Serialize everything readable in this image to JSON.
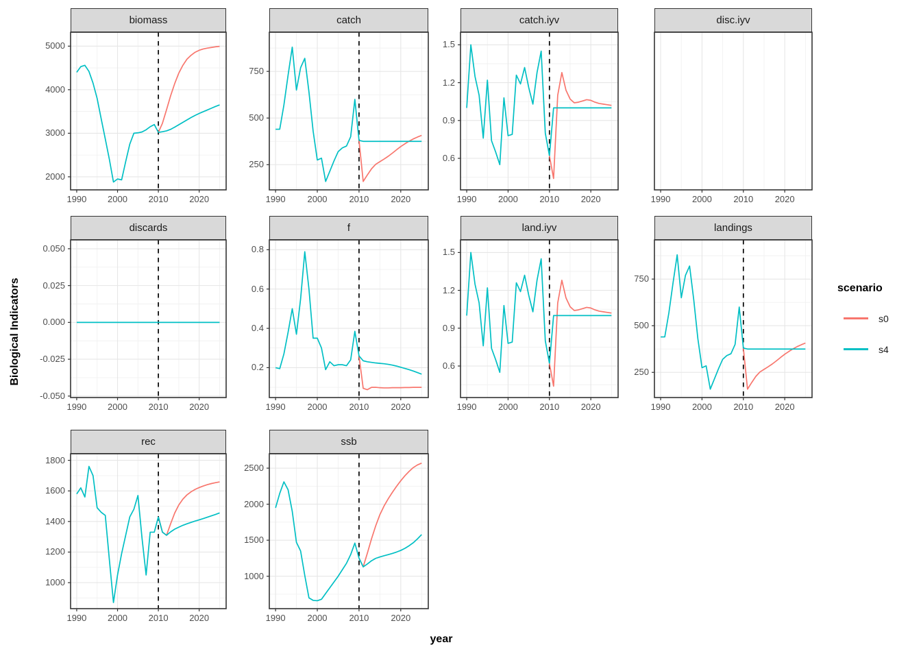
{
  "figure": {
    "x_axis_title": "year",
    "y_axis_title": "Biological Indicators",
    "x_ticks": [
      1990,
      2000,
      2010,
      2020
    ],
    "x_tick_labels": [
      "1990",
      "2000",
      "2010",
      "2020"
    ],
    "x_minor_ticks": [
      1995,
      2005,
      2015,
      2025
    ],
    "xlim": [
      1988.5,
      2026.6
    ],
    "forecast_divider_year": 2010
  },
  "legend": {
    "title": "scenario",
    "entries": [
      {
        "label": "s0",
        "scenario": "s0"
      },
      {
        "label": "s4",
        "scenario": "s4"
      }
    ]
  },
  "colors": {
    "s0": "#F8766D",
    "s4": "#00BFC4",
    "strip_bg": "#D9D9D9",
    "panel_border": "#333333",
    "grid_major": "#E6E6E6",
    "grid_minor": "#F1F1F1",
    "tick_label": "#4D4D4D",
    "divider": "#000000"
  },
  "chart_data": [
    {
      "type": "line",
      "title": "biomass",
      "row": 0,
      "col": 0,
      "show_vline": true,
      "ylim": [
        1700,
        5320
      ],
      "yticks": [
        2000,
        3000,
        4000,
        5000
      ],
      "ytick_labels": [
        "2000",
        "3000",
        "4000",
        "5000"
      ],
      "series": [
        {
          "scenario": "s0",
          "phase": "projection",
          "x0": 2010,
          "y": [
            3020,
            3230,
            3540,
            3860,
            4140,
            4380,
            4560,
            4700,
            4790,
            4860,
            4905,
            4935,
            4955,
            4970,
            4985,
            4995
          ]
        },
        {
          "scenario": "s4",
          "phase": "history",
          "x0": 1990,
          "y": [
            4400,
            4530,
            4560,
            4420,
            4150,
            3800,
            3330,
            2870,
            2400,
            1880,
            1950,
            1930,
            2350,
            2750,
            3000,
            3010,
            3030,
            3080,
            3150,
            3200,
            3020
          ]
        },
        {
          "scenario": "s4",
          "phase": "projection",
          "x0": 2010,
          "y": [
            3020,
            3035,
            3055,
            3090,
            3140,
            3195,
            3250,
            3305,
            3360,
            3410,
            3455,
            3495,
            3535,
            3575,
            3615,
            3650
          ]
        }
      ]
    },
    {
      "type": "line",
      "title": "catch",
      "row": 0,
      "col": 1,
      "show_vline": true,
      "ylim": [
        115,
        960
      ],
      "yticks": [
        250,
        500,
        750
      ],
      "ytick_labels": [
        "250",
        "500",
        "750"
      ],
      "series": [
        {
          "scenario": "s0",
          "phase": "projection",
          "x0": 2010,
          "y": [
            380,
            160,
            195,
            228,
            252,
            266,
            280,
            295,
            312,
            330,
            347,
            362,
            376,
            388,
            398,
            407
          ]
        },
        {
          "scenario": "s4",
          "phase": "history",
          "x0": 1990,
          "y": [
            440,
            440,
            570,
            730,
            880,
            650,
            770,
            820,
            640,
            430,
            275,
            285,
            160,
            215,
            270,
            320,
            340,
            350,
            400,
            600,
            380
          ]
        },
        {
          "scenario": "s4",
          "phase": "projection",
          "x0": 2010,
          "y": [
            380,
            375,
            375,
            375,
            375,
            375,
            375,
            375,
            375,
            375,
            375,
            375,
            375,
            375,
            375,
            375
          ]
        }
      ]
    },
    {
      "type": "line",
      "title": "catch.iyv",
      "row": 0,
      "col": 2,
      "show_vline": true,
      "ylim": [
        0.35,
        1.6
      ],
      "yticks": [
        0.6,
        0.9,
        1.2,
        1.5
      ],
      "ytick_labels": [
        "0.6",
        "0.9",
        "1.2",
        "1.5"
      ],
      "series": [
        {
          "scenario": "s0",
          "phase": "projection",
          "x0": 2010,
          "y": [
            0.62,
            0.44,
            1.1,
            1.28,
            1.14,
            1.07,
            1.04,
            1.045,
            1.055,
            1.065,
            1.06,
            1.045,
            1.035,
            1.03,
            1.025,
            1.02
          ]
        },
        {
          "scenario": "s4",
          "phase": "history",
          "x0": 1990,
          "y": [
            1.0,
            1.5,
            1.25,
            1.1,
            0.76,
            1.22,
            0.74,
            0.65,
            0.55,
            1.08,
            0.78,
            0.79,
            1.26,
            1.19,
            1.32,
            1.16,
            1.03,
            1.28,
            1.45,
            0.8,
            0.62
          ]
        },
        {
          "scenario": "s4",
          "phase": "projection",
          "x0": 2010,
          "y": [
            0.62,
            1.0,
            1.0,
            1.0,
            1.0,
            1.0,
            1.0,
            1.0,
            1.0,
            1.0,
            1.0,
            1.0,
            1.0,
            1.0,
            1.0,
            1.0
          ]
        }
      ]
    },
    {
      "type": "line",
      "title": "disc.iyv",
      "row": 0,
      "col": 3,
      "show_vline": false,
      "ylim": [
        0,
        1
      ],
      "yticks": [],
      "ytick_labels": [],
      "series": []
    },
    {
      "type": "line",
      "title": "discards",
      "row": 1,
      "col": 0,
      "show_vline": true,
      "ylim": [
        -0.051,
        0.056
      ],
      "yticks": [
        -0.05,
        -0.025,
        0.0,
        0.025,
        0.05
      ],
      "ytick_labels": [
        "-0.050",
        "-0.025",
        "0.000",
        "0.025",
        "0.050"
      ],
      "series": [
        {
          "scenario": "s4",
          "phase": "history",
          "x": [
            1990,
            2025
          ],
          "y": [
            0,
            0
          ]
        }
      ]
    },
    {
      "type": "line",
      "title": "f",
      "row": 1,
      "col": 1,
      "show_vline": true,
      "ylim": [
        0.048,
        0.85
      ],
      "yticks": [
        0.2,
        0.4,
        0.6,
        0.8
      ],
      "ytick_labels": [
        "0.2",
        "0.4",
        "0.6",
        "0.8"
      ],
      "series": [
        {
          "scenario": "s0",
          "phase": "projection",
          "x0": 2010,
          "y": [
            0.26,
            0.095,
            0.088,
            0.1,
            0.1,
            0.098,
            0.097,
            0.097,
            0.098,
            0.098,
            0.098,
            0.099,
            0.099,
            0.1,
            0.1,
            0.1
          ]
        },
        {
          "scenario": "s4",
          "phase": "history",
          "x0": 1990,
          "y": [
            0.2,
            0.195,
            0.27,
            0.38,
            0.5,
            0.37,
            0.55,
            0.79,
            0.6,
            0.35,
            0.35,
            0.3,
            0.19,
            0.23,
            0.21,
            0.215,
            0.215,
            0.21,
            0.24,
            0.385,
            0.26
          ]
        },
        {
          "scenario": "s4",
          "phase": "projection",
          "x0": 2010,
          "y": [
            0.26,
            0.235,
            0.23,
            0.227,
            0.224,
            0.222,
            0.22,
            0.217,
            0.213,
            0.208,
            0.202,
            0.196,
            0.19,
            0.183,
            0.175,
            0.167
          ]
        }
      ]
    },
    {
      "type": "line",
      "title": "land.iyv",
      "row": 1,
      "col": 2,
      "show_vline": true,
      "ylim": [
        0.35,
        1.6
      ],
      "yticks": [
        0.6,
        0.9,
        1.2,
        1.5
      ],
      "ytick_labels": [
        "0.6",
        "0.9",
        "1.2",
        "1.5"
      ],
      "series": [
        {
          "scenario": "s0",
          "phase": "projection",
          "x0": 2010,
          "y": [
            0.62,
            0.44,
            1.1,
            1.28,
            1.14,
            1.07,
            1.04,
            1.045,
            1.055,
            1.065,
            1.06,
            1.045,
            1.035,
            1.03,
            1.025,
            1.02
          ]
        },
        {
          "scenario": "s4",
          "phase": "history",
          "x0": 1990,
          "y": [
            1.0,
            1.5,
            1.25,
            1.1,
            0.76,
            1.22,
            0.74,
            0.65,
            0.55,
            1.08,
            0.78,
            0.79,
            1.26,
            1.19,
            1.32,
            1.16,
            1.03,
            1.28,
            1.45,
            0.8,
            0.62
          ]
        },
        {
          "scenario": "s4",
          "phase": "projection",
          "x0": 2010,
          "y": [
            0.62,
            1.0,
            1.0,
            1.0,
            1.0,
            1.0,
            1.0,
            1.0,
            1.0,
            1.0,
            1.0,
            1.0,
            1.0,
            1.0,
            1.0,
            1.0
          ]
        }
      ]
    },
    {
      "type": "line",
      "title": "landings",
      "row": 1,
      "col": 3,
      "show_vline": true,
      "ylim": [
        115,
        960
      ],
      "yticks": [
        250,
        500,
        750
      ],
      "ytick_labels": [
        "250",
        "500",
        "750"
      ],
      "series": [
        {
          "scenario": "s0",
          "phase": "projection",
          "x0": 2010,
          "y": [
            380,
            160,
            195,
            228,
            252,
            266,
            280,
            295,
            312,
            330,
            347,
            362,
            376,
            388,
            398,
            407
          ]
        },
        {
          "scenario": "s4",
          "phase": "history",
          "x0": 1990,
          "y": [
            440,
            440,
            570,
            730,
            880,
            650,
            770,
            820,
            640,
            430,
            275,
            285,
            160,
            215,
            270,
            320,
            340,
            350,
            400,
            600,
            380
          ]
        },
        {
          "scenario": "s4",
          "phase": "projection",
          "x0": 2010,
          "y": [
            380,
            375,
            375,
            375,
            375,
            375,
            375,
            375,
            375,
            375,
            375,
            375,
            375,
            375,
            375,
            375
          ]
        }
      ]
    },
    {
      "type": "line",
      "title": "rec",
      "row": 2,
      "col": 0,
      "show_vline": true,
      "ylim": [
        830,
        1843
      ],
      "yticks": [
        1000,
        1200,
        1400,
        1600,
        1800
      ],
      "ytick_labels": [
        "1000",
        "1200",
        "1400",
        "1600",
        "1800"
      ],
      "series": [
        {
          "scenario": "s0",
          "phase": "projection",
          "x0": 2010,
          "y": [
            1430,
            1330,
            1310,
            1385,
            1455,
            1508,
            1546,
            1574,
            1594,
            1610,
            1622,
            1632,
            1641,
            1648,
            1654,
            1659
          ]
        },
        {
          "scenario": "s4",
          "phase": "history",
          "x0": 1990,
          "y": [
            1580,
            1620,
            1560,
            1760,
            1700,
            1490,
            1460,
            1440,
            1150,
            870,
            1050,
            1190,
            1310,
            1430,
            1480,
            1570,
            1290,
            1050,
            1330,
            1330,
            1430
          ]
        },
        {
          "scenario": "s4",
          "phase": "projection",
          "x0": 2010,
          "y": [
            1430,
            1330,
            1310,
            1332,
            1350,
            1363,
            1375,
            1385,
            1394,
            1403,
            1411,
            1419,
            1428,
            1437,
            1446,
            1456
          ]
        }
      ]
    },
    {
      "type": "line",
      "title": "ssb",
      "row": 2,
      "col": 1,
      "show_vline": true,
      "ylim": [
        550,
        2700
      ],
      "yticks": [
        1000,
        1500,
        2000,
        2500
      ],
      "ytick_labels": [
        "1000",
        "1500",
        "2000",
        "2500"
      ],
      "series": [
        {
          "scenario": "s0",
          "phase": "projection",
          "x0": 2010,
          "y": [
            1250,
            1130,
            1320,
            1520,
            1700,
            1855,
            1975,
            2075,
            2165,
            2248,
            2325,
            2395,
            2455,
            2508,
            2545,
            2570
          ]
        },
        {
          "scenario": "s4",
          "phase": "history",
          "x0": 1990,
          "y": [
            1950,
            2150,
            2310,
            2200,
            1900,
            1470,
            1350,
            1010,
            700,
            665,
            660,
            680,
            760,
            840,
            920,
            1000,
            1090,
            1180,
            1300,
            1460,
            1250
          ]
        },
        {
          "scenario": "s4",
          "phase": "projection",
          "x0": 2010,
          "y": [
            1250,
            1130,
            1170,
            1215,
            1248,
            1268,
            1284,
            1300,
            1317,
            1336,
            1358,
            1387,
            1423,
            1465,
            1518,
            1578
          ]
        }
      ]
    }
  ]
}
